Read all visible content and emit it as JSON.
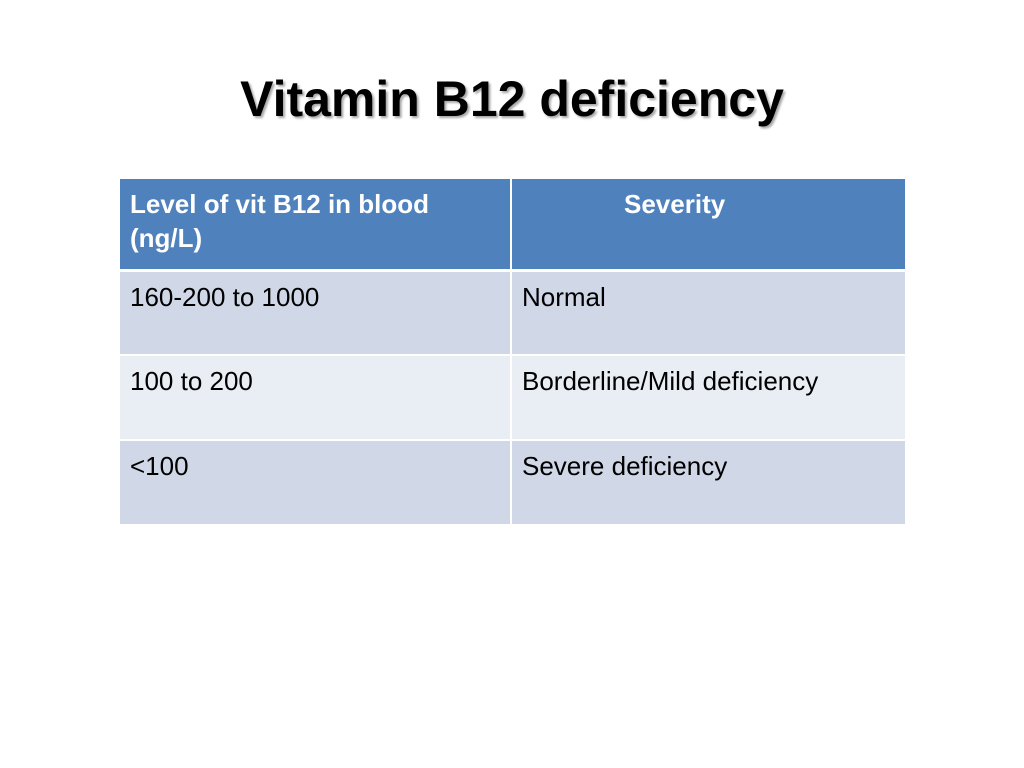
{
  "slide": {
    "title": "Vitamin B12 deficiency"
  },
  "table": {
    "headers": [
      "Level of vit B12 in blood (ng/L)",
      "Severity"
    ],
    "rows": [
      [
        "160-200 to 1000",
        "Normal"
      ],
      [
        "100 to 200",
        "Borderline/Mild deficiency"
      ],
      [
        "<100",
        "Severe deficiency"
      ]
    ]
  },
  "colors": {
    "header_bg": "#4f81bd",
    "row_odd_bg": "#d0d8e8",
    "row_even_bg": "#e9edf4"
  }
}
